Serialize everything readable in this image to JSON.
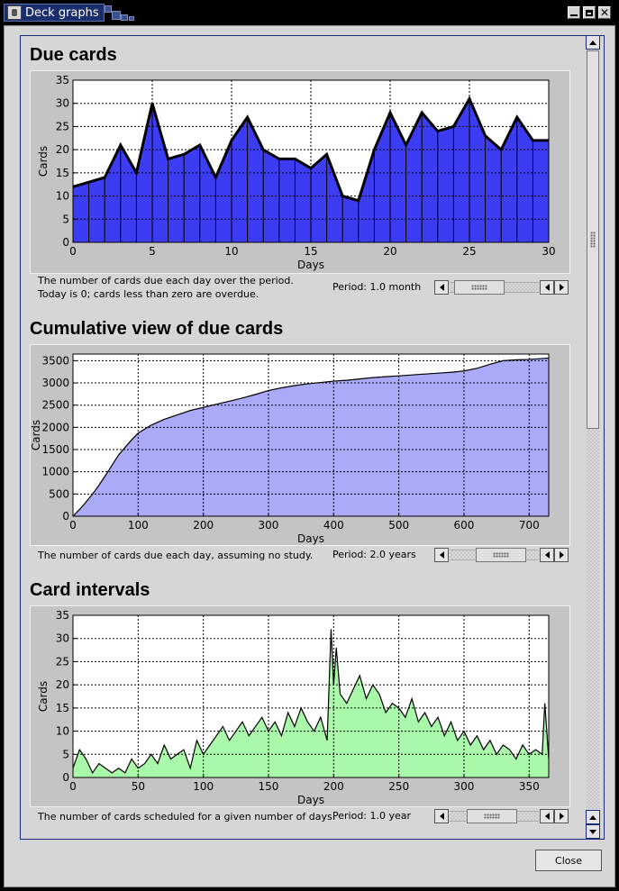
{
  "window": {
    "title": "Deck graphs",
    "controls": [
      "minimize-icon",
      "maximize-icon",
      "close-icon"
    ],
    "close_button": "Close"
  },
  "colors": {
    "due": "#3c3cf2",
    "cumulative": "#aaaaf8",
    "intervals": "#aaf8aa",
    "title_tab": "#1a2e6e"
  },
  "sections": [
    {
      "title": "Due cards",
      "caption_lines": [
        "The number of cards due each day over the period.",
        "Today is 0; cards less than zero are overdue."
      ],
      "period": "Period: 1.0 month"
    },
    {
      "title": "Cumulative view of due cards",
      "caption_lines": [
        "The number of cards due each day, assuming no study."
      ],
      "period": "Period: 2.0 years"
    },
    {
      "title": "Card intervals",
      "caption_lines": [
        "The number of cards scheduled for a given number of days."
      ],
      "period": "Period: 1.0 year"
    }
  ],
  "chart_data": [
    {
      "type": "bar",
      "title": "Due cards",
      "xlabel": "Days",
      "ylabel": "Cards",
      "xlim": [
        0,
        30
      ],
      "ylim": [
        0,
        35
      ],
      "xticks": [
        0,
        5,
        10,
        15,
        20,
        25,
        30
      ],
      "yticks": [
        0,
        5,
        10,
        15,
        20,
        25,
        30,
        35
      ],
      "x": [
        0,
        1,
        2,
        3,
        4,
        5,
        6,
        7,
        8,
        9,
        10,
        11,
        12,
        13,
        14,
        15,
        16,
        17,
        18,
        19,
        20,
        21,
        22,
        23,
        24,
        25,
        26,
        27,
        28,
        29,
        30
      ],
      "values": [
        12,
        13,
        14,
        21,
        15,
        30,
        18,
        19,
        21,
        14,
        22,
        27,
        20,
        18,
        18,
        16,
        19,
        10,
        9,
        20,
        28,
        21,
        28,
        24,
        25,
        31,
        23,
        20,
        27,
        22,
        22
      ],
      "grid": true,
      "color": "#3c3cf2"
    },
    {
      "type": "area",
      "title": "Cumulative view of due cards",
      "xlabel": "Days",
      "ylabel": "Cards",
      "xlim": [
        0,
        730
      ],
      "ylim": [
        0,
        3650
      ],
      "xticks": [
        0,
        100,
        200,
        300,
        400,
        500,
        600,
        700
      ],
      "yticks": [
        0,
        500,
        1000,
        1500,
        2000,
        2500,
        3000,
        3500
      ],
      "x": [
        0,
        10,
        20,
        30,
        40,
        50,
        60,
        70,
        80,
        90,
        100,
        120,
        140,
        160,
        180,
        200,
        220,
        240,
        260,
        280,
        300,
        320,
        340,
        360,
        380,
        400,
        420,
        440,
        460,
        480,
        500,
        520,
        540,
        560,
        580,
        600,
        620,
        640,
        660,
        680,
        700,
        720,
        730
      ],
      "values": [
        0,
        150,
        320,
        500,
        700,
        920,
        1150,
        1380,
        1550,
        1720,
        1870,
        2050,
        2180,
        2280,
        2380,
        2450,
        2520,
        2590,
        2660,
        2740,
        2830,
        2890,
        2940,
        2980,
        3010,
        3040,
        3060,
        3090,
        3120,
        3140,
        3160,
        3180,
        3200,
        3220,
        3240,
        3270,
        3330,
        3420,
        3500,
        3520,
        3530,
        3550,
        3560
      ],
      "grid": true,
      "color": "#aaaaf8"
    },
    {
      "type": "area",
      "title": "Card intervals",
      "xlabel": "Days",
      "ylabel": "Cards",
      "xlim": [
        0,
        365
      ],
      "ylim": [
        0,
        35
      ],
      "xticks": [
        0,
        50,
        100,
        150,
        200,
        250,
        300,
        350
      ],
      "yticks": [
        0,
        5,
        10,
        15,
        20,
        25,
        30,
        35
      ],
      "x": [
        0,
        5,
        10,
        15,
        20,
        25,
        30,
        35,
        40,
        45,
        50,
        55,
        60,
        65,
        70,
        75,
        80,
        85,
        90,
        95,
        100,
        105,
        110,
        115,
        120,
        125,
        130,
        135,
        140,
        145,
        150,
        155,
        160,
        165,
        170,
        175,
        180,
        185,
        190,
        195,
        198,
        200,
        202,
        205,
        210,
        215,
        220,
        225,
        230,
        235,
        240,
        245,
        250,
        255,
        260,
        265,
        270,
        275,
        280,
        285,
        290,
        295,
        300,
        305,
        310,
        315,
        320,
        325,
        330,
        335,
        340,
        345,
        350,
        355,
        360,
        362,
        365
      ],
      "values": [
        2,
        6,
        4,
        1,
        3,
        2,
        1,
        2,
        1,
        4,
        2,
        3,
        5,
        3,
        7,
        4,
        5,
        6,
        2,
        8,
        5,
        7,
        9,
        11,
        8,
        10,
        12,
        9,
        11,
        13,
        10,
        12,
        9,
        14,
        11,
        15,
        12,
        10,
        13,
        8,
        32,
        20,
        28,
        18,
        16,
        19,
        22,
        17,
        20,
        18,
        14,
        16,
        15,
        13,
        17,
        12,
        14,
        11,
        13,
        9,
        12,
        8,
        10,
        7,
        9,
        6,
        8,
        5,
        7,
        6,
        4,
        7,
        5,
        6,
        5,
        16,
        4
      ],
      "grid": true,
      "color": "#aaf8aa"
    }
  ]
}
